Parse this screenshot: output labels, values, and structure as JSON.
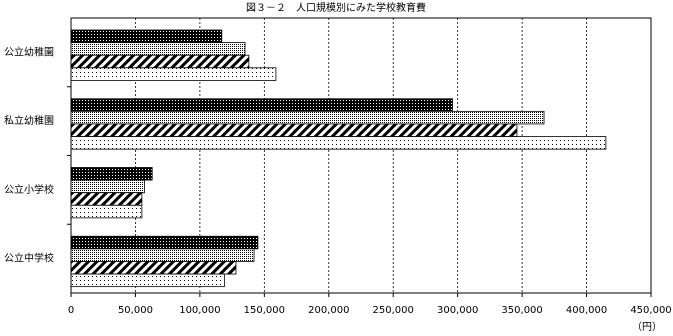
{
  "chart_data": {
    "type": "hbar",
    "title": "図３－２　人口規模別にみた学校教育費",
    "x_unit": "（円）",
    "categories": [
      "公立幼稚園",
      "私立幼稚園",
      "公立小学校",
      "公立中学校"
    ],
    "series": [
      {
        "pattern": "dense-dots",
        "values": [
          117000,
          296000,
          63000,
          145000
        ]
      },
      {
        "pattern": "fine-dots",
        "values": [
          135000,
          367000,
          57000,
          142000
        ]
      },
      {
        "pattern": "hatch",
        "values": [
          138000,
          346000,
          55000,
          128000
        ]
      },
      {
        "pattern": "sparse-dots",
        "values": [
          159000,
          415000,
          55000,
          119000
        ]
      }
    ],
    "xlim": [
      0,
      450000
    ],
    "xticks": [
      0,
      {
        "value": 50000,
        "label": "50,000"
      },
      {
        "value": 100000,
        "label": "100,000"
      },
      {
        "value": 150000,
        "label": "150,000"
      },
      {
        "value": 200000,
        "label": "200,000"
      },
      {
        "value": 250000,
        "label": "250,000"
      },
      {
        "value": 300000,
        "label": "300,000"
      },
      {
        "value": 350000,
        "label": "350,000"
      },
      {
        "value": 400000,
        "label": "400,000"
      },
      {
        "value": 450000,
        "label": "450,000"
      }
    ],
    "grid": true
  }
}
